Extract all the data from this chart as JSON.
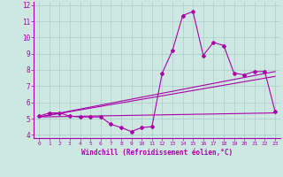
{
  "xlabel": "Windchill (Refroidissement éolien,°C)",
  "xlim": [
    -0.5,
    23.5
  ],
  "ylim": [
    3.8,
    12.2
  ],
  "xticks": [
    0,
    1,
    2,
    3,
    4,
    5,
    6,
    7,
    8,
    9,
    10,
    11,
    12,
    13,
    14,
    15,
    16,
    17,
    18,
    19,
    20,
    21,
    22,
    23
  ],
  "yticks": [
    4,
    5,
    6,
    7,
    8,
    9,
    10,
    11,
    12
  ],
  "bg_color": "#cce8e0",
  "grid_color": "#aacccc",
  "line_color": "#aa00aa",
  "main_x": [
    0,
    1,
    2,
    3,
    4,
    5,
    6,
    7,
    8,
    9,
    10,
    11,
    12,
    13,
    14,
    15,
    16,
    17,
    18,
    19,
    20,
    21,
    22,
    23
  ],
  "main_y": [
    5.15,
    5.35,
    5.35,
    5.15,
    5.1,
    5.1,
    5.1,
    4.65,
    4.45,
    4.2,
    4.45,
    4.5,
    7.8,
    9.2,
    11.35,
    11.6,
    8.9,
    9.7,
    9.5,
    7.8,
    7.7,
    7.9,
    7.9,
    5.45
  ],
  "trend1_x": [
    0,
    23
  ],
  "trend1_y": [
    5.1,
    5.35
  ],
  "trend2_x": [
    0,
    23
  ],
  "trend2_y": [
    5.1,
    7.6
  ],
  "trend3_x": [
    0,
    23
  ],
  "trend3_y": [
    5.1,
    7.9
  ]
}
